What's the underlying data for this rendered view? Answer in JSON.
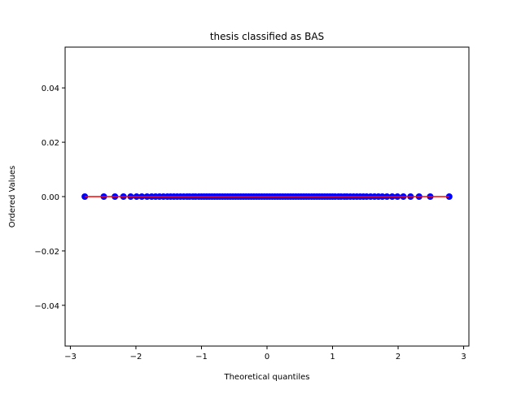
{
  "chart_data": {
    "type": "scatter",
    "title": "thesis classified as BAS",
    "xlabel": "Theoretical quantiles",
    "ylabel": "Ordered Values",
    "xlim": [
      -3.08,
      3.08
    ],
    "ylim": [
      -0.055,
      0.055
    ],
    "xticks": [
      -3,
      -2,
      -1,
      0,
      1,
      2,
      3
    ],
    "xtick_labels": [
      "−3",
      "−2",
      "−1",
      "0",
      "1",
      "2",
      "3"
    ],
    "yticks": [
      -0.04,
      -0.02,
      0.0,
      0.02,
      0.04
    ],
    "ytick_labels": [
      "−0.04",
      "−0.02",
      "0.00",
      "0.02",
      "0.04"
    ],
    "grid": false,
    "marker_color": "#0000ff",
    "line_color": "#ff0000",
    "series": [
      {
        "kind": "points",
        "x": [
          -2.78,
          -2.49,
          -2.32,
          -2.19,
          -2.08,
          -1.99,
          -1.91,
          -1.83,
          -1.76,
          -1.7,
          -1.64,
          -1.58,
          -1.52,
          -1.47,
          -1.42,
          -1.37,
          -1.32,
          -1.27,
          -1.22,
          -1.18,
          -1.13,
          -1.09,
          -1.04,
          -1.0,
          -0.96,
          -0.92,
          -0.88,
          -0.84,
          -0.8,
          -0.76,
          -0.72,
          -0.68,
          -0.64,
          -0.6,
          -0.56,
          -0.52,
          -0.48,
          -0.44,
          -0.4,
          -0.36,
          -0.32,
          -0.28,
          -0.24,
          -0.2,
          -0.16,
          -0.12,
          -0.08,
          -0.04,
          0.0,
          0.04,
          0.08,
          0.12,
          0.16,
          0.2,
          0.24,
          0.28,
          0.32,
          0.36,
          0.4,
          0.44,
          0.48,
          0.52,
          0.56,
          0.6,
          0.64,
          0.68,
          0.72,
          0.76,
          0.8,
          0.84,
          0.88,
          0.92,
          0.96,
          1.0,
          1.04,
          1.09,
          1.13,
          1.18,
          1.22,
          1.27,
          1.32,
          1.37,
          1.42,
          1.47,
          1.52,
          1.58,
          1.64,
          1.7,
          1.76,
          1.83,
          1.91,
          1.99,
          2.08,
          2.19,
          2.32,
          2.49,
          2.78
        ],
        "y": 0.0
      },
      {
        "kind": "line",
        "x": [
          -2.78,
          2.78
        ],
        "y": [
          0.0,
          0.0
        ]
      }
    ]
  }
}
